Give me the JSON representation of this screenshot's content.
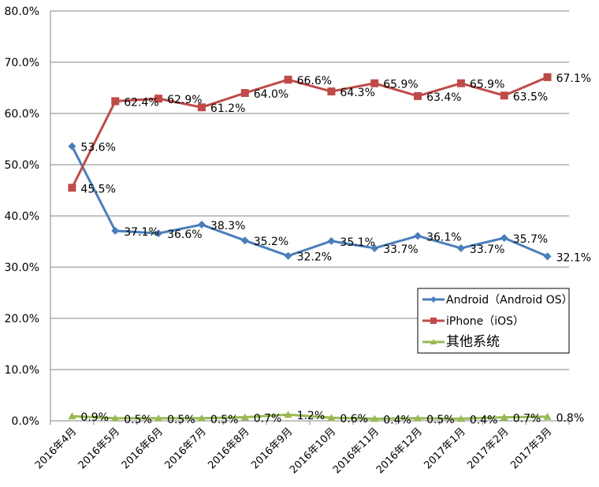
{
  "chart_data": {
    "type": "line",
    "categories": [
      "2016年4月",
      "2016年5月",
      "2016年6月",
      "2016年7月",
      "2016年8月",
      "2016年9月",
      "2016年10月",
      "2016年11月",
      "2016年12月",
      "2017年1月",
      "2017年2月",
      "2017年3月"
    ],
    "y_ticks": [
      "0.0%",
      "10.0%",
      "20.0%",
      "30.0%",
      "40.0%",
      "50.0%",
      "60.0%",
      "70.0%",
      "80.0%"
    ],
    "ylim": [
      0,
      80
    ],
    "grid": true,
    "legend_position": "right",
    "series": [
      {
        "name": "Android（Android OS）",
        "color": "#4a7ebb",
        "marker": "diamond",
        "values": [
          53.6,
          37.1,
          36.6,
          38.3,
          35.2,
          32.2,
          35.1,
          33.7,
          36.1,
          33.7,
          35.7,
          32.1
        ],
        "labels": [
          "53.6%",
          "37.1%",
          "36.6%",
          "38.3%",
          "35.2%",
          "32.2%",
          "35.1%",
          "33.7%",
          "36.1%",
          "33.7%",
          "35.7%",
          "32.1%"
        ]
      },
      {
        "name": "iPhone（iOS）",
        "color": "#be4b48",
        "marker": "square",
        "values": [
          45.5,
          62.4,
          62.9,
          61.2,
          64.0,
          66.6,
          64.3,
          65.9,
          63.4,
          65.9,
          63.5,
          67.1
        ],
        "labels": [
          "45.5%",
          "62.4%",
          "62.9%",
          "61.2%",
          "64.0%",
          "66.6%",
          "64.3%",
          "65.9%",
          "63.4%",
          "65.9%",
          "63.5%",
          "67.1%"
        ]
      },
      {
        "name": "其他系统",
        "color": "#98b954",
        "marker": "triangle",
        "values": [
          0.9,
          0.5,
          0.5,
          0.5,
          0.7,
          1.2,
          0.6,
          0.4,
          0.5,
          0.4,
          0.7,
          0.8
        ],
        "labels": [
          "0.9%",
          "0.5%",
          "0.5%",
          "0.5%",
          "0.7%",
          "1.2%",
          "0.6%",
          "0.4%",
          "0.5%",
          "0.4%",
          "0.7%",
          "0.8%"
        ]
      }
    ]
  }
}
